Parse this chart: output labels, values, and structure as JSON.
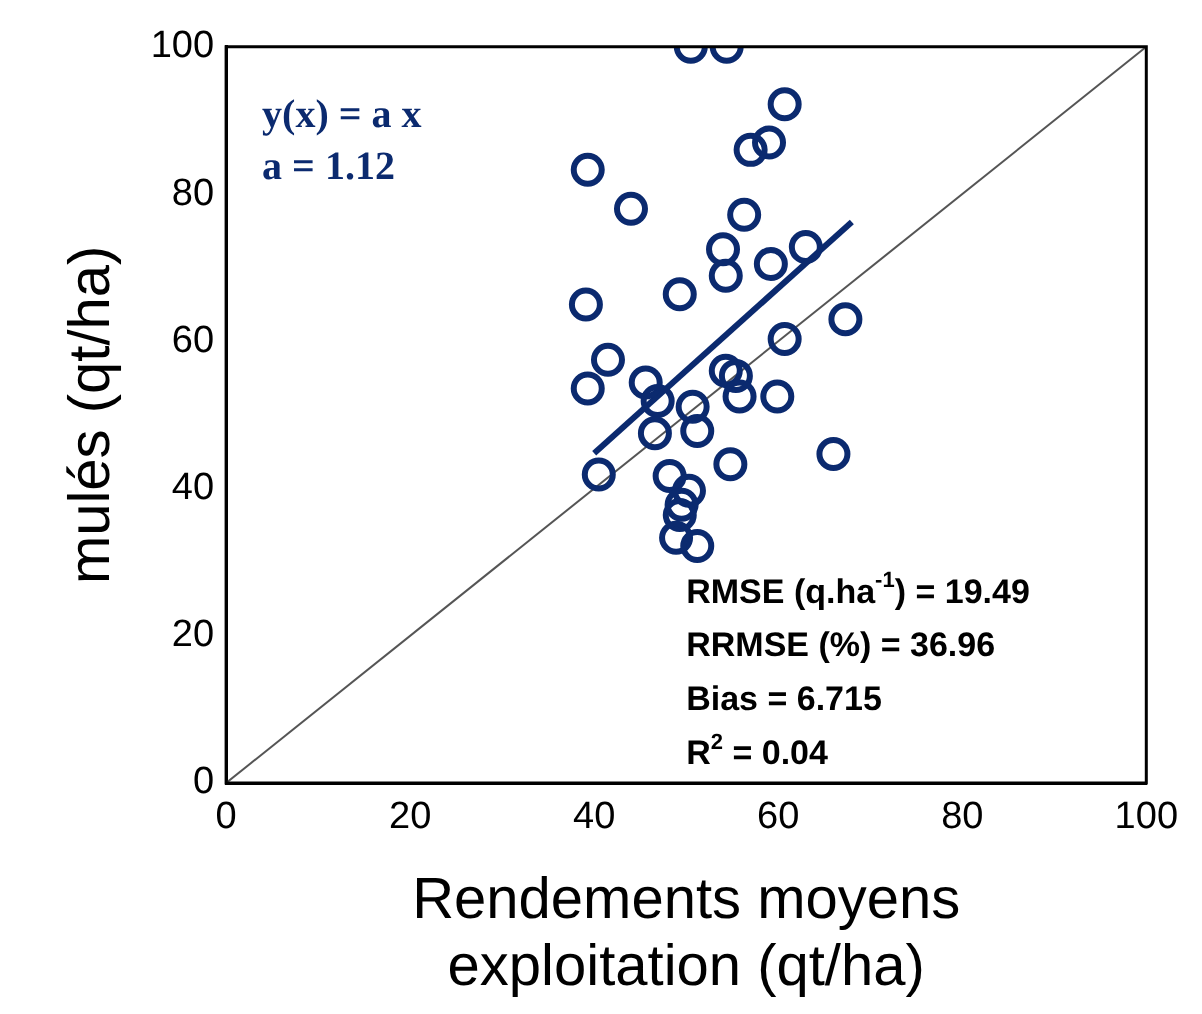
{
  "chart_data": {
    "type": "scatter",
    "xlabel": "Rendements moyens\nexploitation (qt/ha)",
    "ylabel": "mulés (qt/ha)",
    "xlim": [
      0,
      100
    ],
    "xticks": [
      0,
      20,
      40,
      60,
      80,
      100
    ],
    "ylim": [
      0,
      100
    ],
    "yticks": [
      0,
      20,
      40,
      60,
      80,
      100
    ],
    "grid": false,
    "legend": false,
    "annotations": [
      "y(x) = a x",
      "a = 1.12",
      "RMSE (q.ha$^{-1}$) = 19.49",
      "RRMSE (%) = 36.96",
      "Bias = 6.715",
      "R$^{2}$ = 0.04"
    ],
    "series": [
      {
        "type": "scatter",
        "marker": "circle",
        "color": "#0b2a6f",
        "x": [
          50.5,
          54.4,
          60.7,
          59,
          57,
          39.3,
          44,
          56.3,
          54,
          63,
          54.3,
          59.2,
          49.3,
          39.1,
          67.3,
          60.7,
          41.5,
          54.3,
          55.4,
          39.3,
          45.6,
          55.8,
          59.9,
          50.7,
          46.9,
          51.2,
          46.6,
          66,
          54.8,
          40.5,
          48.2,
          50.3,
          49.5,
          49.3,
          48.9,
          51.2
        ],
        "values": [
          100,
          100,
          92.2,
          87,
          86,
          83.3,
          78,
          77.2,
          72.5,
          72.8,
          68.9,
          70.5,
          66.4,
          65,
          63,
          60.3,
          57.5,
          56,
          55.3,
          53.6,
          54.4,
          52.5,
          52.5,
          51.1,
          51.9,
          47.8,
          47.5,
          44.7,
          43.3,
          41.9,
          41.7,
          39.7,
          37.8,
          36.4,
          33.3,
          32.2
        ]
      },
      {
        "type": "line",
        "marker": "none",
        "color": "#0b2a6f",
        "x": [
          40,
          68
        ],
        "values": [
          44.8,
          76.2
        ]
      },
      {
        "type": "line",
        "marker": "none",
        "color": "#555555",
        "x": [
          0,
          100
        ],
        "values": [
          0,
          100
        ]
      }
    ]
  }
}
